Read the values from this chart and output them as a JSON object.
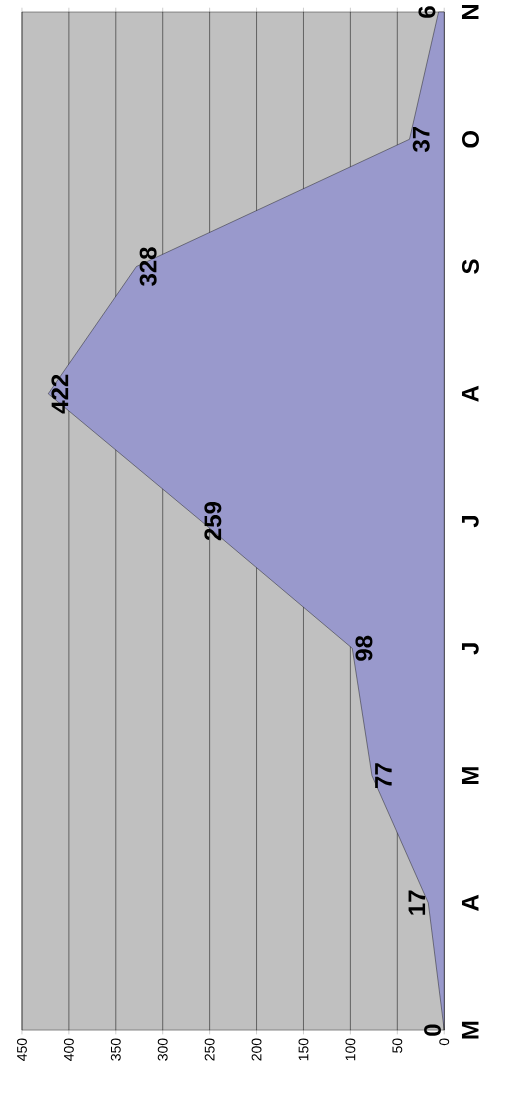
{
  "chart_data": {
    "type": "area",
    "orientation": "horizontal",
    "categories": [
      "N",
      "O",
      "S",
      "A",
      "J",
      "J",
      "M",
      "A",
      "M"
    ],
    "values": [
      6,
      37,
      328,
      422,
      259,
      98,
      77,
      17,
      0
    ],
    "color": "#9999cc",
    "xlim": [
      450,
      0
    ],
    "xticks": [
      450,
      400,
      350,
      300,
      250,
      200,
      150,
      100,
      50,
      0
    ],
    "grid": "x",
    "data_labels": true
  }
}
